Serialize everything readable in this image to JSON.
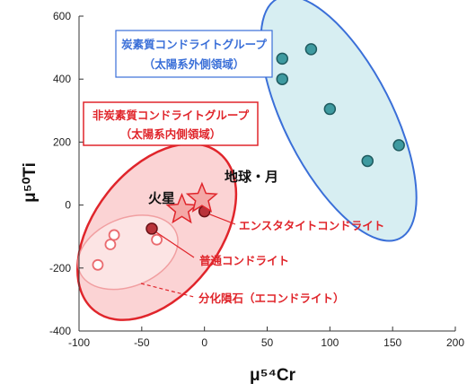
{
  "chart_data": {
    "type": "scatter",
    "xlabel": "μ⁵⁴Cr",
    "ylabel": "μ⁵⁰Ti",
    "xlim": [
      -100,
      200
    ],
    "ylim": [
      -400,
      600
    ],
    "x_ticks": [
      "-100",
      "-50",
      "0",
      "50",
      "100",
      "150",
      "200"
    ],
    "y_ticks": [
      "-400",
      "-200",
      "0",
      "200",
      "400",
      "600"
    ],
    "grid": false,
    "groups": [
      {
        "title_line1": "炭素質コンドライトグループ",
        "title_line2": "（太陽系外側領域）",
        "color": "#3a6fd8",
        "fill": "#d7eef2",
        "points": [
          {
            "x": 62,
            "y": 465
          },
          {
            "x": 62,
            "y": 400
          },
          {
            "x": 85,
            "y": 495
          },
          {
            "x": 100,
            "y": 305
          },
          {
            "x": 130,
            "y": 140
          },
          {
            "x": 155,
            "y": 190
          }
        ]
      },
      {
        "title_line1": "非炭素質コンドライトグループ",
        "title_line2": "（太陽系内側領域）",
        "color": "#e0252b",
        "fill": "#fbd3d4"
      }
    ],
    "series": [
      {
        "name": "エンスタタイトコンドライト",
        "x": [
          0
        ],
        "y": [
          -20
        ]
      },
      {
        "name": "普通コンドライト",
        "x": [
          -42
        ],
        "y": [
          -75
        ]
      },
      {
        "name": "分化隕石（エコンドライト）",
        "x": [
          -38,
          -72,
          -75,
          -85
        ],
        "y": [
          -110,
          -95,
          -125,
          -190
        ]
      }
    ],
    "stars": [
      {
        "name": "火星",
        "x": -18,
        "y": -15
      },
      {
        "name": "地球・月",
        "x": -2,
        "y": 20
      }
    ]
  }
}
